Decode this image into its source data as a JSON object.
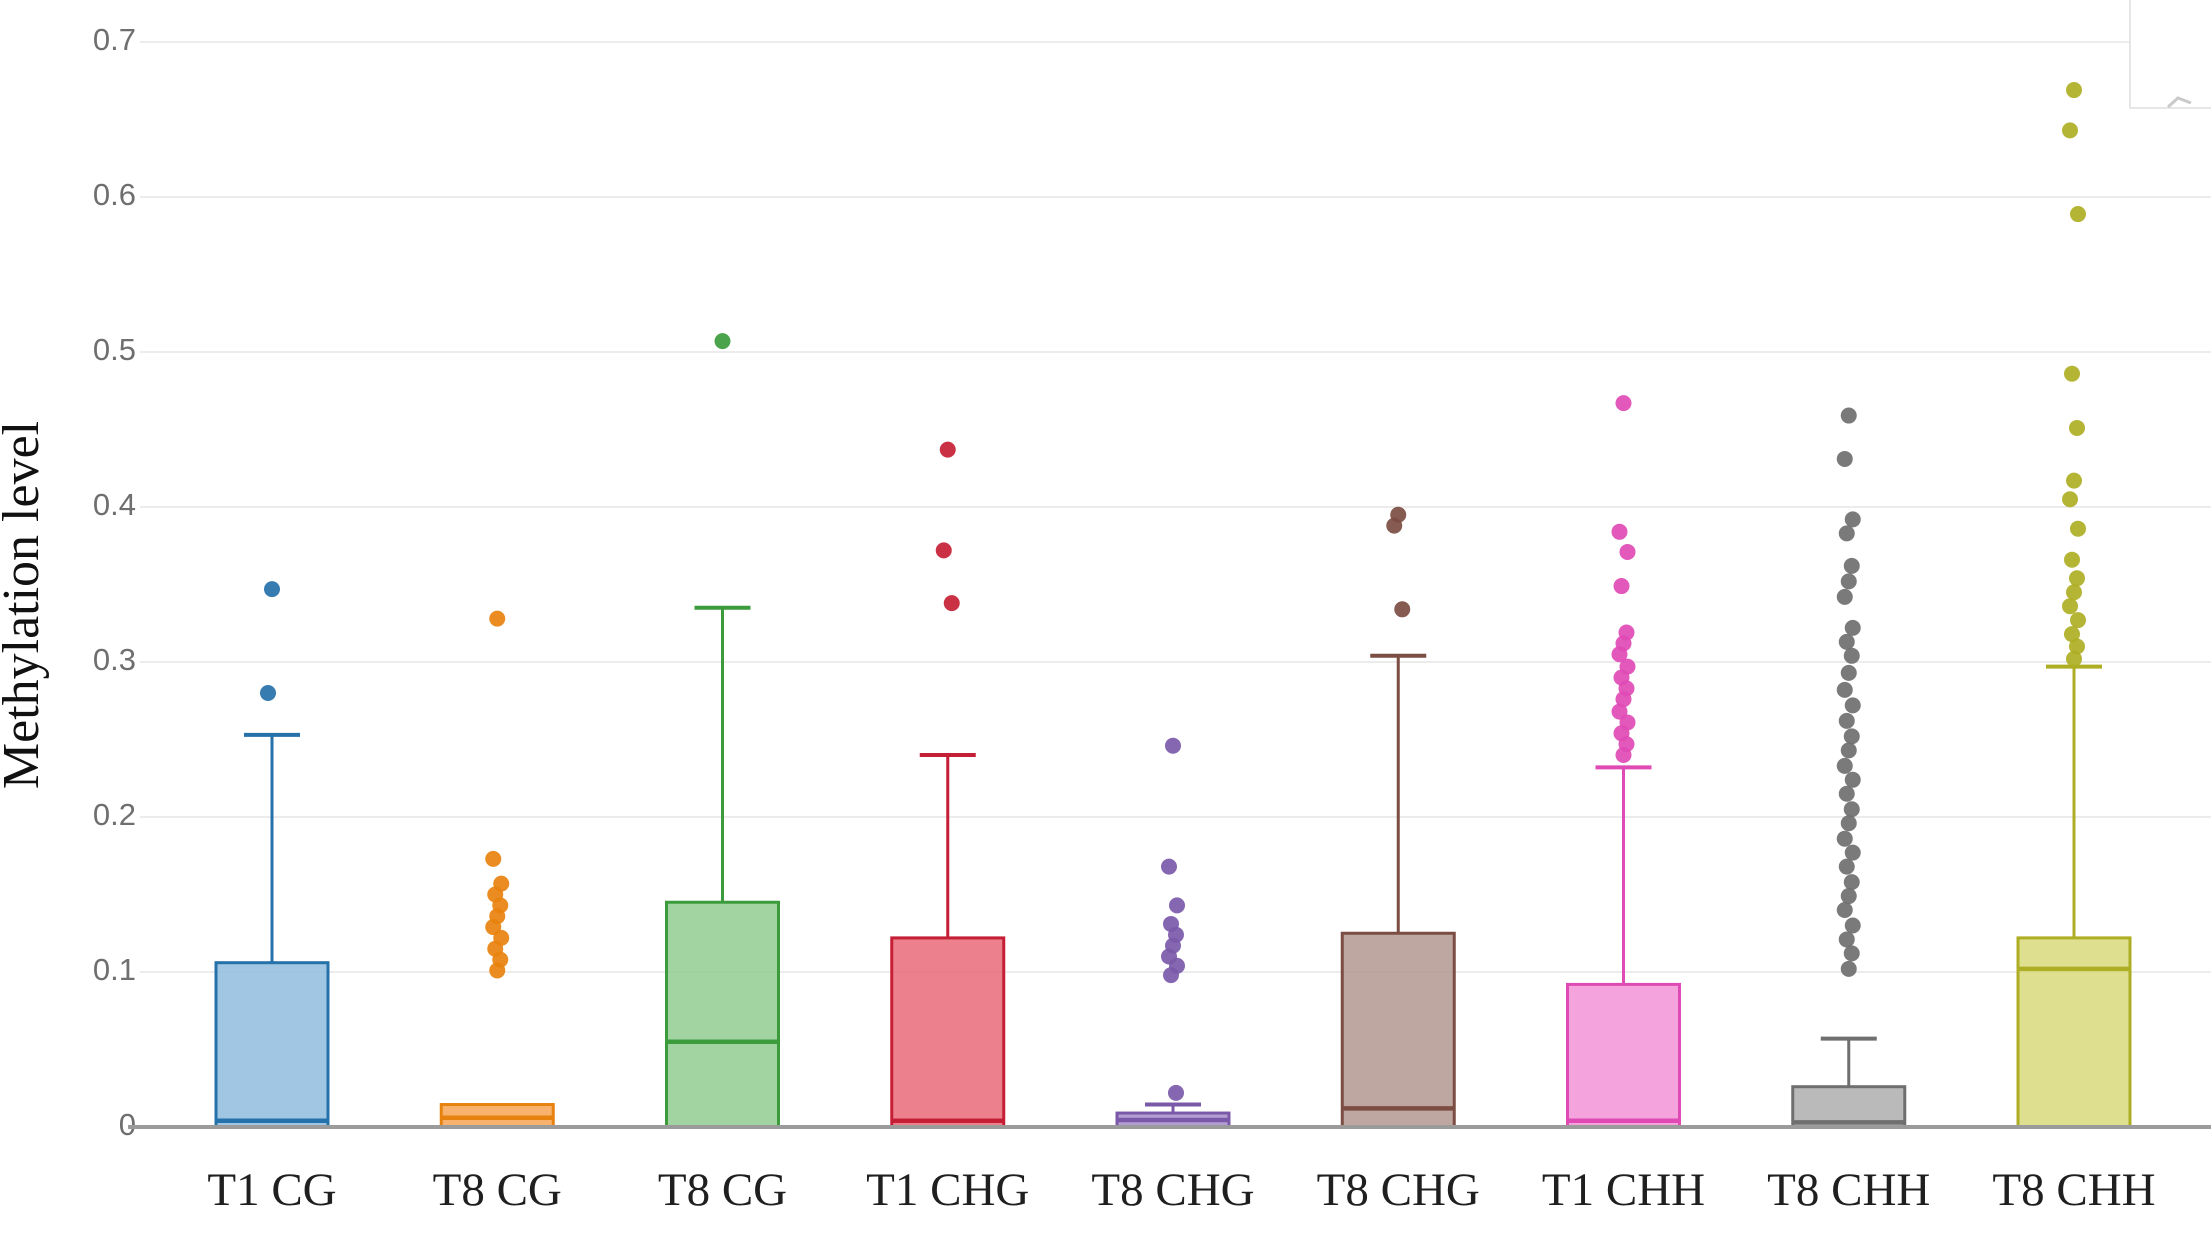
{
  "figure": {
    "background": "#ffffff"
  },
  "axes": {
    "y_title": "Methylation level",
    "y_ticks": [
      {
        "label": "0.7",
        "value": 0.7
      },
      {
        "label": "0.6",
        "value": 0.6
      },
      {
        "label": "0.5",
        "value": 0.5
      },
      {
        "label": "0.4",
        "value": 0.4
      },
      {
        "label": "0.3",
        "value": 0.3
      },
      {
        "label": "0.2",
        "value": 0.2
      },
      {
        "label": "0.1",
        "value": 0.1
      },
      {
        "label": "0",
        "value": 0.0
      }
    ],
    "grid_color": "#ececec",
    "baseline_color": "#9b9b9b",
    "tick_label_color": "#6f6f6f"
  },
  "chart_data": {
    "type": "boxplot",
    "title": "",
    "xlabel": "",
    "ylabel": "Methylation level",
    "ylim": [
      0,
      0.7
    ],
    "grid": "horizontal",
    "legend_position": "none",
    "categories": [
      "T1 CG",
      "T8 CG",
      "T8 CG",
      "T1 CHG",
      "T8 CHG",
      "T8 CHG",
      "T1 CHH",
      "T8 CHH",
      "T8 CHH"
    ],
    "series": [
      {
        "name": "T1 CG",
        "stroke": "#2571a9",
        "fill": "#8fbcde",
        "q1": 0,
        "median": 0.004,
        "q3": 0.106,
        "whisker_low": 0,
        "whisker_high": 0.253,
        "outliers": [
          0.347,
          0.28
        ]
      },
      {
        "name": "T8 CG",
        "stroke": "#e8820e",
        "fill": "#f7a554",
        "q1": 0,
        "median": 0.006,
        "q3": 0.0145,
        "whisker_low": 0,
        "whisker_high": 0.0145,
        "outliers": [
          0.328,
          0.173,
          0.157,
          0.15,
          0.143,
          0.136,
          0.129,
          0.122,
          0.115,
          0.108,
          0.101
        ]
      },
      {
        "name": "T8 CG",
        "stroke": "#3c9c3c",
        "fill": "#92cc92",
        "q1": 0,
        "median": 0.055,
        "q3": 0.145,
        "whisker_low": 0,
        "whisker_high": 0.335,
        "outliers": [
          0.507
        ]
      },
      {
        "name": "T1 CHG",
        "stroke": "#c51f35",
        "fill": "#e96a79",
        "q1": 0,
        "median": 0.004,
        "q3": 0.122,
        "whisker_low": 0,
        "whisker_high": 0.24,
        "outliers": [
          0.437,
          0.372,
          0.338
        ]
      },
      {
        "name": "T8 CHG",
        "stroke": "#7b59a9",
        "fill": "#a78ccb",
        "q1": 0,
        "median": 0.0045,
        "q3": 0.009,
        "whisker_low": 0,
        "whisker_high": 0.0145,
        "outliers": [
          0.246,
          0.168,
          0.143,
          0.131,
          0.124,
          0.117,
          0.11,
          0.104,
          0.098,
          0.022
        ]
      },
      {
        "name": "T8 CHG",
        "stroke": "#7c4d42",
        "fill": "#b2988f",
        "q1": 0,
        "median": 0.012,
        "q3": 0.125,
        "whisker_low": 0,
        "whisker_high": 0.304,
        "outliers": [
          0.395,
          0.388,
          0.334
        ]
      },
      {
        "name": "T1 CHH",
        "stroke": "#e04ab5",
        "fill": "#f393d7",
        "q1": 0,
        "median": 0.004,
        "q3": 0.092,
        "whisker_low": 0,
        "whisker_high": 0.232,
        "outliers": [
          0.467,
          0.384,
          0.371,
          0.349,
          0.319,
          0.312,
          0.305,
          0.297,
          0.29,
          0.283,
          0.276,
          0.268,
          0.261,
          0.254,
          0.247,
          0.24
        ]
      },
      {
        "name": "T8 CHH",
        "stroke": "#6f6f6f",
        "fill": "#aeaeae",
        "q1": 0,
        "median": 0.003,
        "q3": 0.026,
        "whisker_low": 0,
        "whisker_high": 0.057,
        "outliers": [
          0.459,
          0.431,
          0.392,
          0.383,
          0.362,
          0.352,
          0.342,
          0.322,
          0.313,
          0.304,
          0.293,
          0.282,
          0.272,
          0.262,
          0.252,
          0.243,
          0.233,
          0.224,
          0.215,
          0.205,
          0.196,
          0.186,
          0.177,
          0.168,
          0.158,
          0.149,
          0.14,
          0.13,
          0.121,
          0.112,
          0.102
        ]
      },
      {
        "name": "T8 CHH",
        "stroke": "#aeae24",
        "fill": "#d9d97c",
        "q1": 0,
        "median": 0.102,
        "q3": 0.122,
        "whisker_low": 0,
        "whisker_high": 0.297,
        "outliers": [
          0.669,
          0.643,
          0.589,
          0.486,
          0.451,
          0.417,
          0.405,
          0.386,
          0.366,
          0.354,
          0.345,
          0.336,
          0.327,
          0.318,
          0.31,
          0.302
        ]
      }
    ]
  },
  "artifacts": {
    "cropped_legend_fragment": {
      "border_color": "#e6e6e6",
      "dash_color": "#c9c9c9"
    }
  }
}
